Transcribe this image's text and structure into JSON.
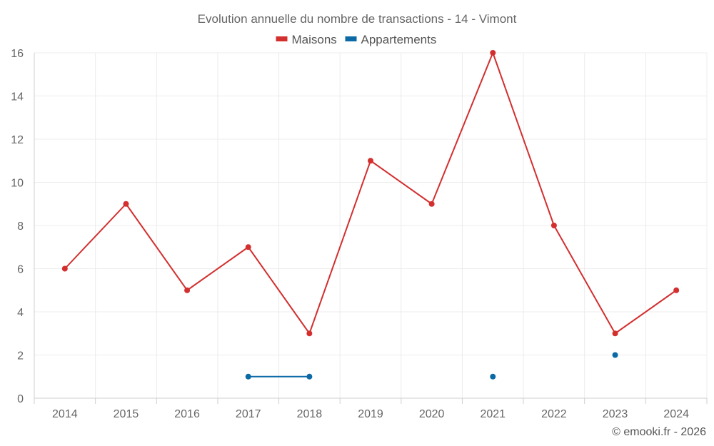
{
  "chart_data": {
    "type": "line",
    "title": "Evolution annuelle du nombre de transactions - 14 - Vimont",
    "categories": [
      "2014",
      "2015",
      "2016",
      "2017",
      "2018",
      "2019",
      "2020",
      "2021",
      "2022",
      "2023",
      "2024"
    ],
    "series": [
      {
        "name": "Maisons",
        "color": "#d32f2f",
        "values": [
          6,
          9,
          5,
          7,
          3,
          11,
          9,
          16,
          8,
          3,
          5
        ]
      },
      {
        "name": "Appartements",
        "color": "#0b6aa6",
        "values": [
          null,
          null,
          null,
          1,
          1,
          null,
          null,
          1,
          null,
          2,
          null
        ]
      }
    ],
    "ylim": [
      0,
      16
    ],
    "yticks": [
      0,
      2,
      4,
      6,
      8,
      10,
      12,
      14,
      16
    ],
    "grid": true,
    "legend": "top-center",
    "credit": "© emooki.fr - 2026"
  }
}
